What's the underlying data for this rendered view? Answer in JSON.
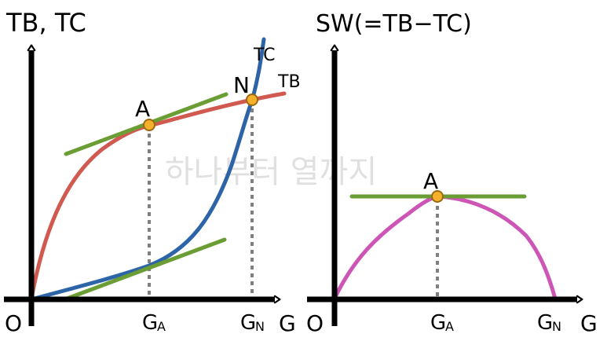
{
  "colors": {
    "tb_curve": "#d05a50",
    "tc_curve": "#2d64a8",
    "sw_curve": "#cc55b5",
    "tangent": "#6a9e35",
    "point_fill": "#f5b12c",
    "point_stroke": "#9a6a10",
    "axis": "#000000",
    "dotted": "#808080",
    "watermark": "#d9d9d9"
  },
  "left_panel": {
    "y_axis_label": "TB, TC",
    "x_axis_label": "G",
    "origin_label": "O",
    "tc_label": "TC",
    "tb_label": "TB",
    "point_a_label": "A",
    "point_n_label": "N",
    "tick_ga_main": "G",
    "tick_ga_sub": "A",
    "tick_gn_main": "G",
    "tick_gn_sub": "N"
  },
  "right_panel": {
    "y_axis_label": "SW(=TB−TC)",
    "x_axis_label": "G",
    "origin_label": "O",
    "point_a_label": "A",
    "tick_ga_main": "G",
    "tick_ga_sub": "A",
    "tick_gn_main": "G",
    "tick_gn_sub": "N"
  },
  "watermark": "하나부터 열까지"
}
